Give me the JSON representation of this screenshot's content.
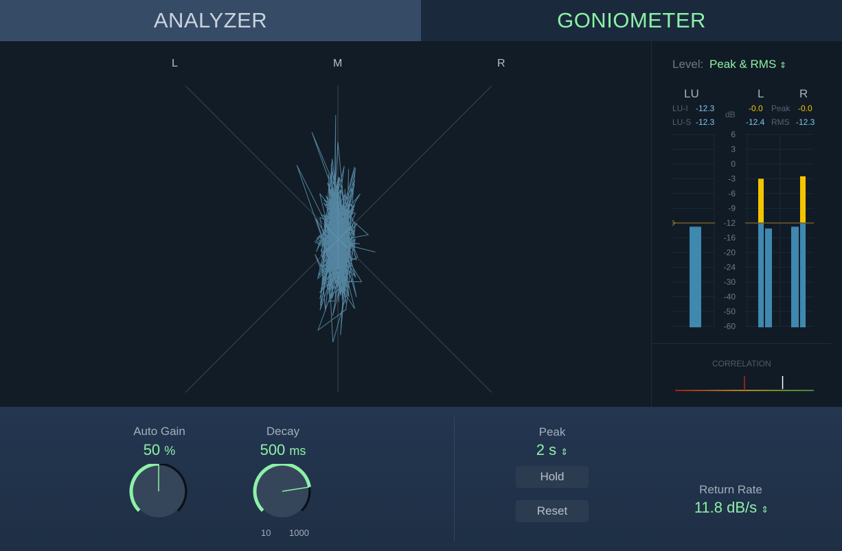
{
  "tabs": [
    {
      "label": "ANALYZER",
      "active": false
    },
    {
      "label": "GONIOMETER",
      "active": true
    }
  ],
  "goniometer": {
    "labels": {
      "l": "L",
      "m": "M",
      "r": "R"
    },
    "trace_color": "#7ec8ee"
  },
  "meter": {
    "level_label": "Level:",
    "level_value": "Peak & RMS",
    "headers": {
      "lu": "LU",
      "l": "L",
      "r": "R",
      "db": "dB"
    },
    "lu_i_label": "LU-I",
    "lu_i": "-12.3",
    "lu_s_label": "LU-S",
    "lu_s": "-12.3",
    "peak_label": "Peak",
    "l_peak": "-0.0",
    "r_peak": "-0.0",
    "rms_label": "RMS",
    "l_rms": "-12.4",
    "r_rms": "-12.3",
    "scale": [
      "6",
      "3",
      "0",
      "-3",
      "-6",
      "-9",
      "-12",
      "-16",
      "-20",
      "-24",
      "-30",
      "-40",
      "-50",
      "-60"
    ],
    "target_level": "-12",
    "bars": {
      "lu": -13,
      "l_peak": -3,
      "l_rms": -13.5,
      "r_rms": -13,
      "r_peak": -2.5
    },
    "colors": {
      "bar": "#3f88b0",
      "peak": "#f5c400",
      "target": "#6e5f2a"
    },
    "correlation_label": "CORRELATION",
    "correlation_value": 0.55
  },
  "controls": {
    "auto_gain": {
      "label": "Auto Gain",
      "value": "50",
      "unit": "%",
      "fraction": 0.5
    },
    "decay": {
      "label": "Decay",
      "value": "500",
      "unit": "ms",
      "min": "10",
      "max": "1000",
      "fraction": 0.8
    },
    "peak": {
      "label": "Peak",
      "value": "2 s"
    },
    "hold": "Hold",
    "reset": "Reset",
    "return_rate": {
      "label": "Return Rate",
      "value": "11.8 dB/s"
    }
  },
  "accent": "#8ef0a8"
}
